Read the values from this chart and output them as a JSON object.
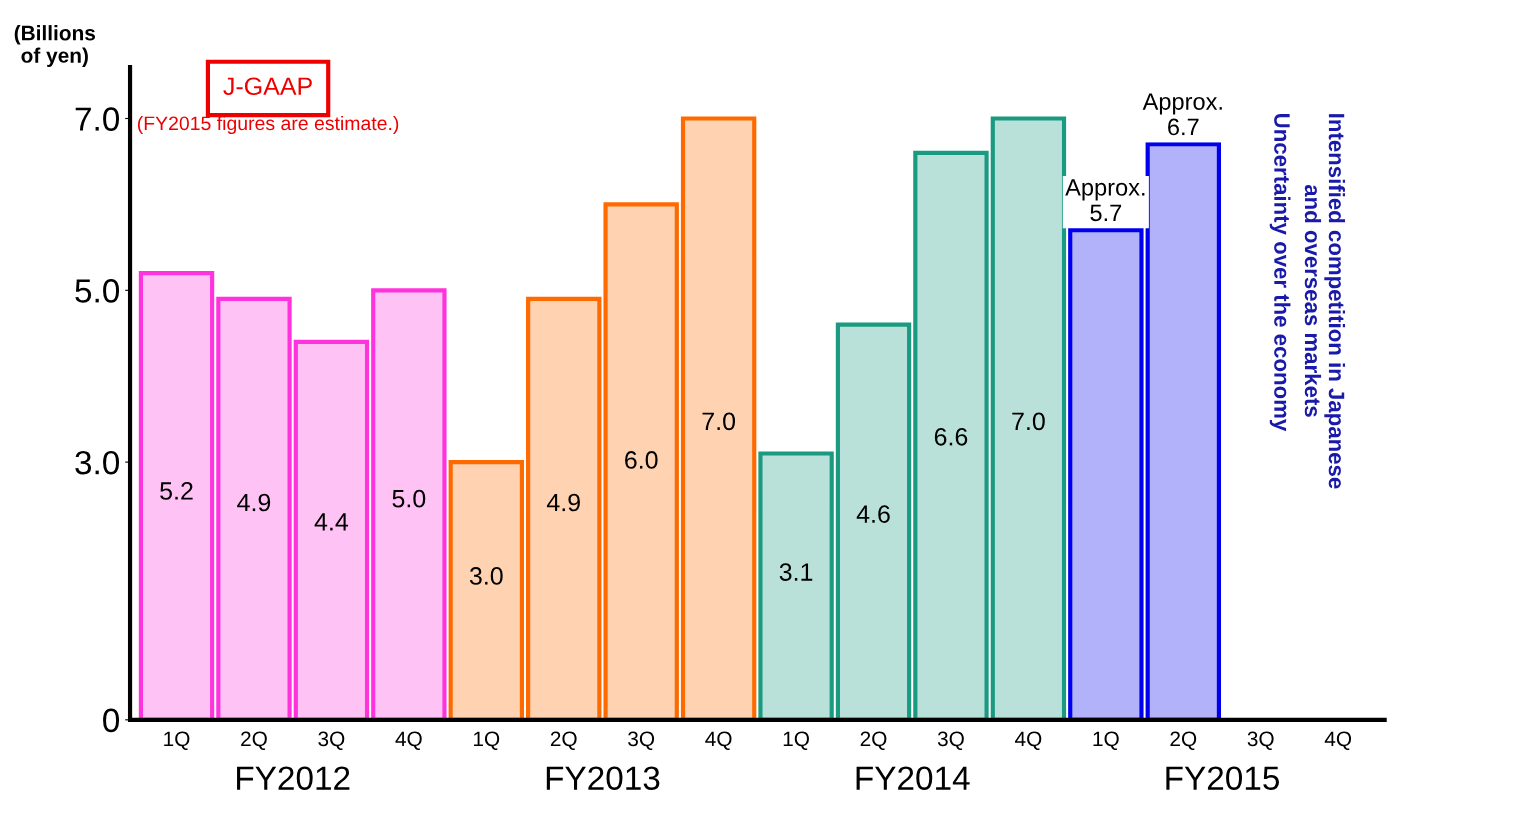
{
  "chart_data": {
    "type": "bar",
    "ylabel": "(Billions\nof yen)",
    "categories": [
      "1Q",
      "2Q",
      "3Q",
      "4Q",
      "1Q",
      "2Q",
      "3Q",
      "4Q",
      "1Q",
      "2Q",
      "3Q",
      "4Q",
      "1Q",
      "2Q",
      "3Q",
      "4Q"
    ],
    "values": [
      5.2,
      4.9,
      4.4,
      5.0,
      3.0,
      4.9,
      6.0,
      7.0,
      3.1,
      4.6,
      6.6,
      7.0,
      5.7,
      6.7,
      null,
      null
    ],
    "colors": [
      "#ff33dd",
      "#ff33dd",
      "#ff33dd",
      "#ff33dd",
      "#ff6a00",
      "#ff6a00",
      "#ff6a00",
      "#ff6a00",
      "#1a9a80",
      "#1a9a80",
      "#1a9a80",
      "#1a9a80",
      "#0000ee",
      "#0000ee",
      "#0000ee",
      "#0000ee"
    ],
    "value_labels": [
      "5.2",
      "4.9",
      "4.4",
      "5.0",
      "3.0",
      "4.9",
      "6.0",
      "7.0",
      "3.1",
      "4.6",
      "6.6",
      "7.0",
      "Approx.\n5.7",
      "Approx.\n6.7",
      null,
      null
    ],
    "ylim": [
      0,
      7.6
    ],
    "yticks": [
      0,
      {
        "value": 3,
        "label": "3.0"
      },
      {
        "value": 5,
        "label": "5.0"
      },
      {
        "value": 7,
        "label": "7.0"
      }
    ],
    "grid": false,
    "annotations": [
      "J-GAAP",
      "(FY2015 figures are estimate.)",
      "FY2012",
      "FY2013",
      "FY2014",
      "FY2015",
      "Intensified competition in Japanese\nand overseas markets",
      "Uncertainty over the economy"
    ]
  }
}
